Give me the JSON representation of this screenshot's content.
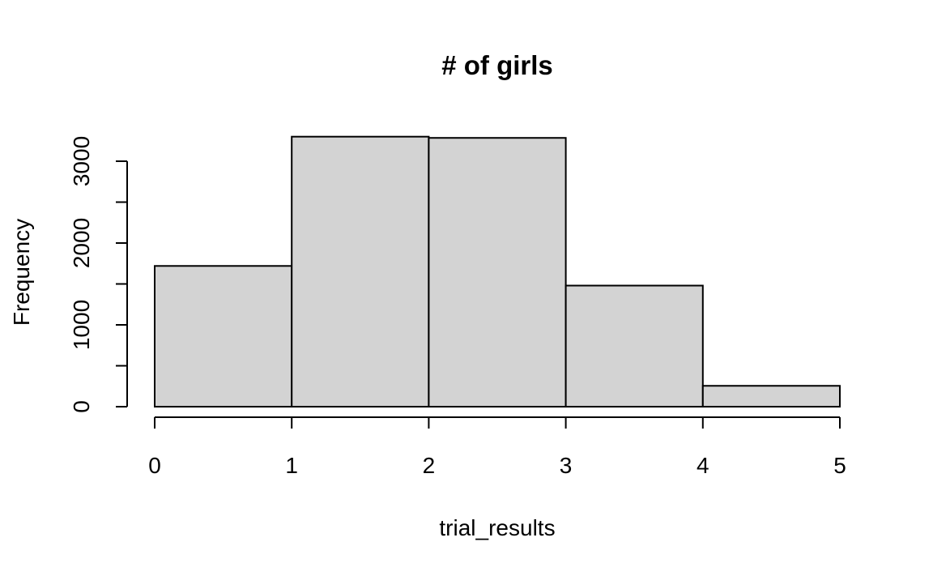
{
  "chart_data": {
    "type": "bar",
    "title": "# of girls",
    "xlabel": "trial_results",
    "ylabel": "Frequency",
    "bins": [
      [
        0,
        1
      ],
      [
        1,
        2
      ],
      [
        2,
        3
      ],
      [
        3,
        4
      ],
      [
        4,
        5
      ]
    ],
    "values": [
      1720,
      3300,
      3285,
      1480,
      255
    ],
    "xlim": [
      0,
      5
    ],
    "ylim": [
      0,
      3000
    ],
    "x_ticks": [
      "0",
      "1",
      "2",
      "3",
      "4",
      "5"
    ],
    "y_ticks": [
      "0",
      "1000",
      "2000",
      "3000"
    ],
    "y_minor_tick_step": 500,
    "bar_color": "#d3d3d3",
    "grid": false,
    "legend": "none"
  }
}
